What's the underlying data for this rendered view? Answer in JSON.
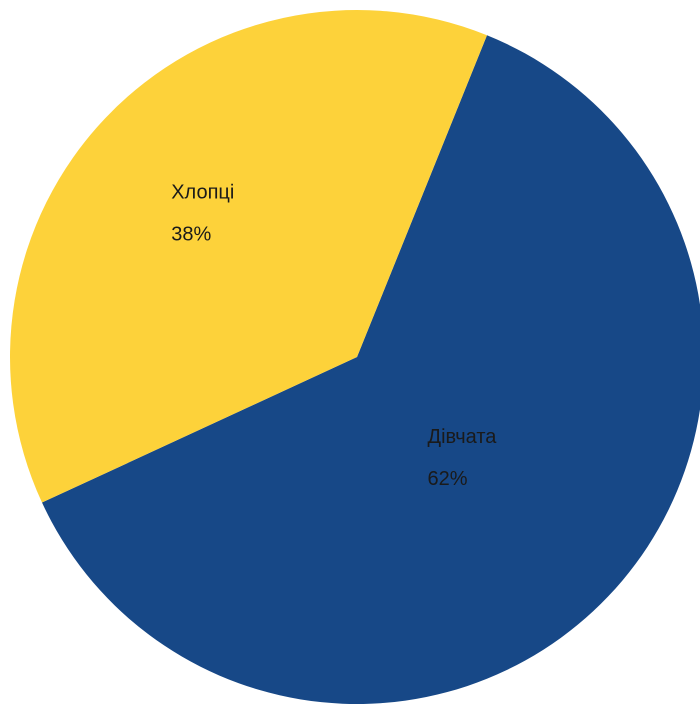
{
  "chart_data": {
    "type": "pie",
    "categories": [
      "Дівчата",
      "Хлопці"
    ],
    "values": [
      62,
      38
    ],
    "value_labels": [
      "62%",
      "38%"
    ],
    "colors": [
      "#174887",
      "#fdd23a"
    ]
  }
}
